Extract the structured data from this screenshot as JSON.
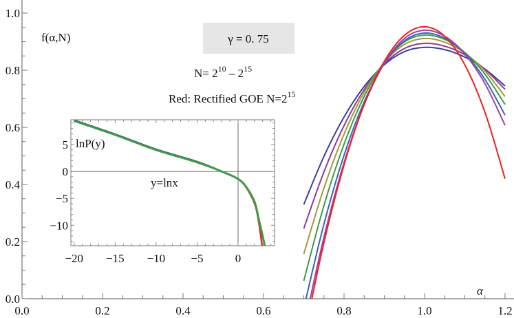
{
  "chart_data": [
    {
      "type": "line",
      "ylabel": "f(α,N)",
      "xlabel": "α",
      "xlim": [
        0.0,
        1.2
      ],
      "ylim": [
        0.0,
        1.0
      ],
      "xticks": [
        "0.0",
        "0.2",
        "0.4",
        "0.6",
        "0.8",
        "1.0",
        "1.2"
      ],
      "yticks": [
        "0.0",
        "0.2",
        "0.4",
        "0.6",
        "0.8",
        "1.0"
      ],
      "grid": false,
      "annotations": {
        "gamma": "γ = 0. 75",
        "n_range_prefix": "N= 2",
        "n_range_exp1": "10",
        "n_range_mid": "  –  2",
        "n_range_exp2": "15",
        "red_note": "Red: Rectified GOE N=2",
        "red_note_exp": "15"
      },
      "x": [
        0.7,
        0.75,
        0.8,
        0.85,
        0.9,
        0.95,
        1.0,
        1.05,
        1.1,
        1.15,
        1.2
      ],
      "series": [
        {
          "color": "#3b3f9c",
          "values": [
            0.33,
            0.498,
            0.636,
            0.743,
            0.819,
            0.865,
            0.88,
            0.872,
            0.846,
            0.804,
            0.745
          ]
        },
        {
          "color": "#8e3b8e",
          "values": [
            0.246,
            0.444,
            0.606,
            0.732,
            0.822,
            0.876,
            0.894,
            0.884,
            0.854,
            0.803,
            0.733
          ]
        },
        {
          "color": "#a39a3a",
          "values": [
            0.157,
            0.387,
            0.576,
            0.722,
            0.827,
            0.89,
            0.911,
            0.898,
            0.86,
            0.797,
            0.708
          ]
        },
        {
          "color": "#3f9a4a",
          "values": [
            0.063,
            0.326,
            0.541,
            0.708,
            0.827,
            0.899,
            0.923,
            0.908,
            0.862,
            0.786,
            0.68
          ]
        },
        {
          "color": "#3a63b8",
          "values": [
            -0.033,
            0.261,
            0.502,
            0.689,
            0.823,
            0.903,
            0.93,
            0.912,
            0.858,
            0.768,
            0.643
          ]
        },
        {
          "color": "#9a44a8",
          "values": [
            -0.104,
            0.215,
            0.476,
            0.679,
            0.824,
            0.911,
            0.94,
            0.919,
            0.857,
            0.753,
            0.607
          ]
        },
        {
          "color": "#ee2222",
          "values": [
            -0.137,
            0.196,
            0.468,
            0.68,
            0.831,
            0.922,
            0.952,
            0.919,
            0.819,
            0.653,
            0.42
          ]
        }
      ]
    },
    {
      "type": "line",
      "ylabel": "lnP(y)",
      "xlabel": "y=lnx",
      "xlim": [
        -20.4,
        4.45
      ],
      "ylim": [
        -13.8,
        9.6
      ],
      "xticks": [
        "−20",
        "−15",
        "−10",
        "−5",
        "0"
      ],
      "yticks": [
        "−10",
        "−5",
        "0",
        "5"
      ],
      "grid": false,
      "x": [
        -20,
        -15,
        -10,
        -5,
        -2,
        0,
        1,
        2,
        2.5,
        3.0,
        3.25
      ],
      "series": [
        {
          "color": "#ee2222",
          "values": [
            9.5,
            6.9,
            4.1,
            1.8,
            0.0,
            -1.4,
            -3.0,
            -5.9,
            -9.2,
            -14.5,
            null
          ]
        },
        {
          "color": "#3b3f9c",
          "values": [
            9.5,
            6.9,
            4.1,
            1.8,
            0.0,
            -1.4,
            -2.9,
            -5.6,
            -8.7,
            -12.0,
            -13.8
          ]
        },
        {
          "color": "#3f9a4a",
          "values": [
            9.4,
            6.8,
            4.0,
            1.7,
            0.0,
            -1.4,
            -2.9,
            -5.6,
            -8.7,
            -12.0,
            -13.8
          ]
        }
      ]
    }
  ]
}
